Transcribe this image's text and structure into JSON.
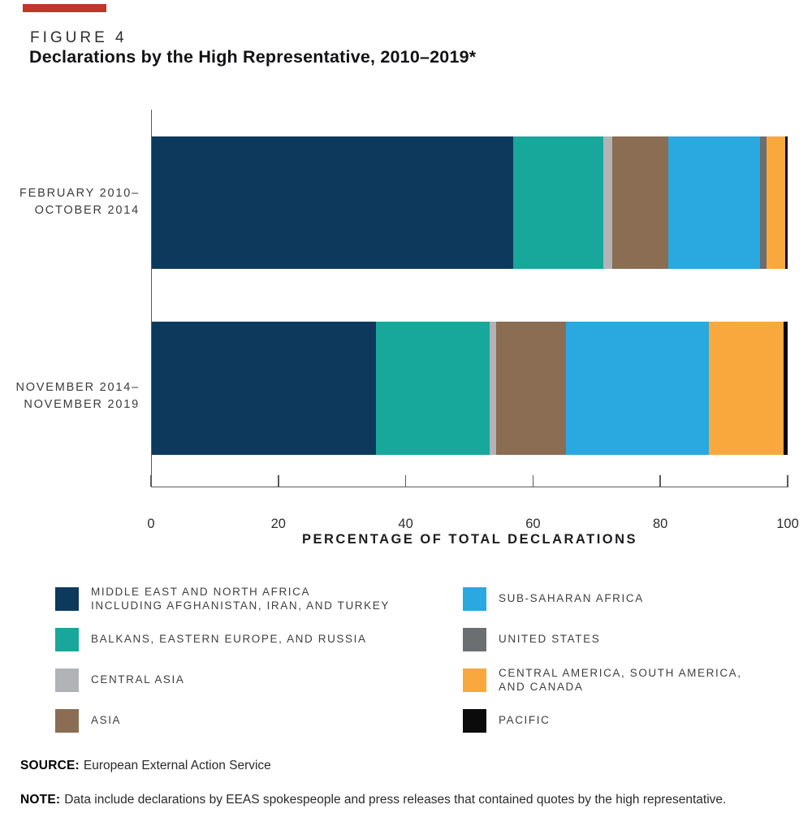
{
  "figure": {
    "label": "FIGURE 4",
    "title": "Declarations by the High Representative, 2010–2019*",
    "accent_color": "#bf362b"
  },
  "chart_data": {
    "type": "bar",
    "orientation": "horizontal",
    "stacked": true,
    "units": "percent",
    "xlabel": "PERCENTAGE OF TOTAL DECLARATIONS",
    "xlim": [
      0,
      100
    ],
    "x_ticks": [
      "0",
      "20",
      "40",
      "60",
      "80",
      "100"
    ],
    "rows": [
      {
        "label_line1": "FEBRUARY 2010–",
        "label_line2": "OCTOBER 2014"
      },
      {
        "label_line1": "NOVEMBER 2014–",
        "label_line2": "NOVEMBER 2019"
      }
    ],
    "series": [
      {
        "key": "mena",
        "name": "MIDDLE EAST AND NORTH AFRICA INCLUDING AFGHANISTAN, IRAN, AND TURKEY",
        "color": "#0d3a5c",
        "values": [
          56.8,
          35.2
        ]
      },
      {
        "key": "balkans-eastern-europe-russia",
        "name": "BALKANS, EASTERN EUROPE, AND RUSSIA",
        "color": "#18a79b",
        "values": [
          14.2,
          17.9
        ]
      },
      {
        "key": "central-asia",
        "name": "CENTRAL ASIA",
        "color": "#b1b3b6",
        "values": [
          1.4,
          1.0
        ]
      },
      {
        "key": "asia",
        "name": "ASIA",
        "color": "#8a6d52",
        "values": [
          8.8,
          11.0
        ]
      },
      {
        "key": "sub-saharan-africa",
        "name": "SUB-SAHARAN AFRICA",
        "color": "#29a9e0",
        "values": [
          14.5,
          22.5
        ]
      },
      {
        "key": "united-states",
        "name": "UNITED STATES",
        "color": "#6d6e71",
        "values": [
          1.0,
          0
        ]
      },
      {
        "key": "central-america-south-america-canada",
        "name": "CENTRAL AMERICA, SOUTH AMERICA, AND CANADA",
        "color": "#f9a83d",
        "values": [
          2.9,
          11.8
        ]
      },
      {
        "key": "pacific",
        "name": "PACIFIC",
        "color": "#0b0b0b",
        "values": [
          0.4,
          0.6
        ]
      }
    ]
  },
  "legend": {
    "left": [
      {
        "lines": [
          "MIDDLE EAST AND NORTH AFRICA",
          "INCLUDING AFGHANISTAN, IRAN, AND TURKEY"
        ],
        "color": "#0d3a5c"
      },
      {
        "lines": [
          "BALKANS, EASTERN EUROPE, AND RUSSIA"
        ],
        "color": "#18a79b"
      },
      {
        "lines": [
          "CENTRAL ASIA"
        ],
        "color": "#b1b3b6"
      },
      {
        "lines": [
          "ASIA"
        ],
        "color": "#8a6d52"
      }
    ],
    "right": [
      {
        "lines": [
          "SUB-SAHARAN AFRICA"
        ],
        "color": "#29a9e0"
      },
      {
        "lines": [
          "UNITED STATES"
        ],
        "color": "#6d6e71"
      },
      {
        "lines": [
          "CENTRAL AMERICA, SOUTH AMERICA,",
          "AND CANADA"
        ],
        "color": "#f9a83d"
      },
      {
        "lines": [
          "PACIFIC"
        ],
        "color": "#0b0b0b"
      }
    ]
  },
  "source": {
    "label": "SOURCE:",
    "text": "European External Action Service"
  },
  "note": {
    "label": "NOTE:",
    "text": "Data include declarations by EEAS spokespeople and press releases that contained quotes by the high representative."
  }
}
